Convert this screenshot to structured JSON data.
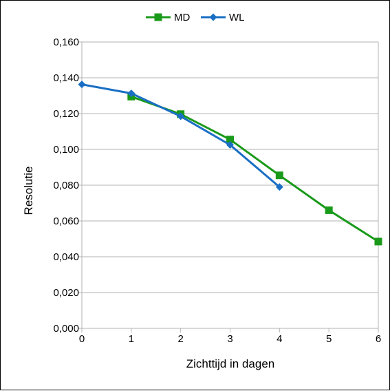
{
  "chart_data": {
    "type": "line",
    "title": "",
    "xlabel": "Zichttijd in dagen",
    "ylabel": "Resolutie",
    "x_ticks": [
      "0",
      "1",
      "2",
      "3",
      "4",
      "5",
      "6"
    ],
    "y_ticks": [
      "0,000",
      "0,020",
      "0,040",
      "0,060",
      "0,080",
      "0,100",
      "0,120",
      "0,140",
      "0,160"
    ],
    "xlim": [
      0,
      6
    ],
    "ylim": [
      0,
      0.16
    ],
    "grid": "horizontal",
    "legend_position": "top-center",
    "series": [
      {
        "name": "MD",
        "color": "#1a9a1a",
        "marker": "square",
        "x": [
          1,
          2,
          3,
          4,
          5,
          6
        ],
        "values": [
          0.1295,
          0.1197,
          0.1055,
          0.0855,
          0.066,
          0.0485
        ]
      },
      {
        "name": "WL",
        "color": "#1a6fc4",
        "marker": "diamond",
        "x": [
          0,
          1,
          2,
          3,
          4
        ],
        "values": [
          0.1363,
          0.1313,
          0.1185,
          0.1025,
          0.079
        ]
      }
    ]
  }
}
